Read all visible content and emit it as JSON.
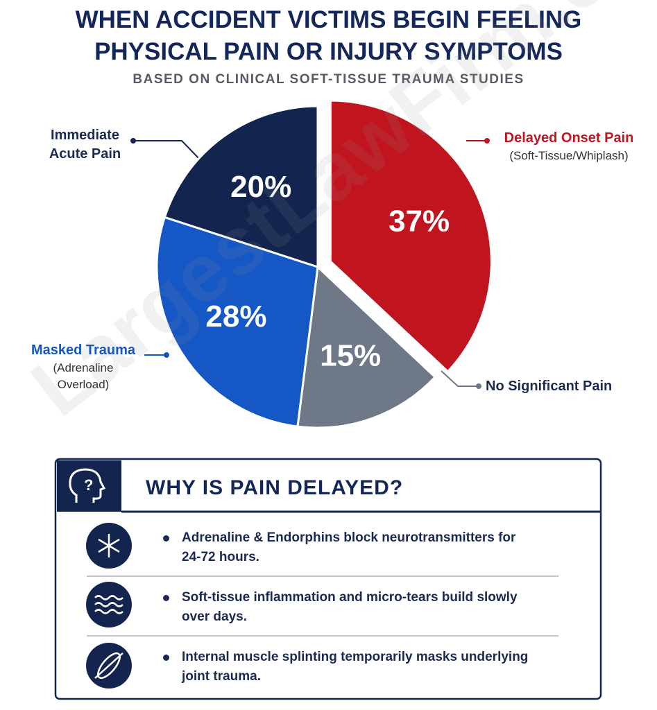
{
  "chart_data": {
    "type": "pie",
    "title": "WHEN ACCIDENT VICTIMS BEGIN FEELING PHYSICAL PAIN OR INJURY SYMPTOMS",
    "subtitle": "BASED ON CLINICAL SOFT-TISSUE TRAUMA STUDIES",
    "categories": [
      "Delayed Onset Pain",
      "No Significant Pain",
      "Masked Trauma",
      "Immediate Acute Pain"
    ],
    "notes": [
      "(Soft-Tissue/Whiplash)",
      null,
      "(Adrenaline Overload)",
      null
    ],
    "values": [
      37,
      15,
      28,
      20
    ],
    "value_labels": [
      "37%",
      "15%",
      "28%",
      "20%"
    ],
    "colors": [
      "#c0141e",
      "#6e7887",
      "#1557c5",
      "#13244f"
    ],
    "label_colors": [
      "#c0141e",
      "#1b2a52",
      "#1557c5",
      "#1b2a52"
    ],
    "exploded": [
      true,
      false,
      false,
      false
    ]
  },
  "watermark": "LargestLawFirm.com",
  "panel": {
    "title": "WHY IS PAIN DELAYED?",
    "items": [
      "Adrenaline & Endorphins block neurotransmitters for 24-72 hours.",
      "Soft-tissue inflammation and micro-tears build slowly over days.",
      "Internal muscle splinting temporarily masks underlying joint trauma."
    ]
  }
}
